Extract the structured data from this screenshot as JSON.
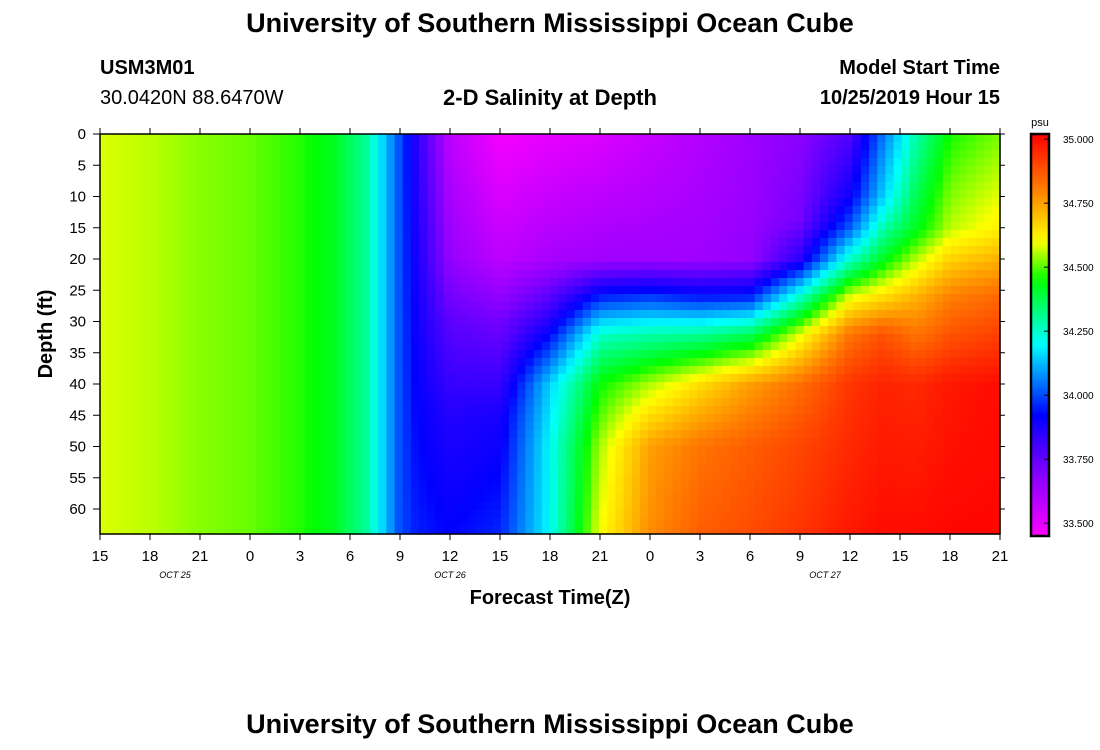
{
  "header": {
    "title": "University of Southern Mississippi Ocean Cube",
    "station_id": "USM3M01",
    "station_location": "30.0420N 88.6470W",
    "plot_title": "2-D Salinity at Depth",
    "model_start_label": "Model Start Time",
    "model_start_value": "10/25/2019 Hour 15"
  },
  "footer": {
    "title": "University of Southern Mississippi Ocean Cube"
  },
  "chart_data": {
    "type": "heatmap",
    "title": "2-D Salinity at Depth",
    "xlabel": "Forecast Time(Z)",
    "ylabel": "Depth (ft)",
    "x_tick_labels": [
      "15",
      "18",
      "21",
      "0",
      "3",
      "6",
      "9",
      "12",
      "15",
      "18",
      "21",
      "0",
      "3",
      "6",
      "9",
      "12",
      "15",
      "18",
      "21"
    ],
    "date_labels": [
      {
        "label": "OCT 25",
        "at_tick": 1.5
      },
      {
        "label": "OCT 26",
        "at_tick": 7
      },
      {
        "label": "OCT 27",
        "at_tick": 14.5
      }
    ],
    "x_range_hours": [
      0,
      54
    ],
    "y_ticks": [
      0,
      5,
      10,
      15,
      20,
      25,
      30,
      35,
      40,
      45,
      50,
      55,
      60
    ],
    "y_range": [
      0,
      64
    ],
    "y_reversed": true,
    "colorbar": {
      "unit": "psu",
      "range": [
        33.45,
        35.02
      ],
      "ticks": [
        "33.500",
        "33.750",
        "34.000",
        "34.250",
        "34.500",
        "34.750",
        "35.000"
      ]
    },
    "colormap": [
      {
        "v": 33.45,
        "c": "#ff00ff"
      },
      {
        "v": 33.7,
        "c": "#8000ff"
      },
      {
        "v": 33.92,
        "c": "#0000ff"
      },
      {
        "v": 34.06,
        "c": "#0080ff"
      },
      {
        "v": 34.2,
        "c": "#00ffff"
      },
      {
        "v": 34.45,
        "c": "#00ff00"
      },
      {
        "v": 34.6,
        "c": "#ffff00"
      },
      {
        "v": 34.8,
        "c": "#ff8000"
      },
      {
        "v": 35.02,
        "c": "#ff0000"
      }
    ],
    "salinity_profiles": [
      {
        "hour": 0,
        "depths": [
          0,
          64
        ],
        "values": [
          34.58,
          34.58
        ]
      },
      {
        "hour": 3,
        "depths": [
          0,
          64
        ],
        "values": [
          34.56,
          34.56
        ]
      },
      {
        "hour": 6,
        "depths": [
          0,
          64
        ],
        "values": [
          34.53,
          34.53
        ]
      },
      {
        "hour": 9,
        "depths": [
          0,
          64
        ],
        "values": [
          34.51,
          34.51
        ]
      },
      {
        "hour": 12,
        "depths": [
          0,
          64
        ],
        "values": [
          34.47,
          34.47
        ]
      },
      {
        "hour": 14,
        "depths": [
          0,
          64
        ],
        "values": [
          34.42,
          34.42
        ]
      },
      {
        "hour": 16,
        "depths": [
          0,
          64
        ],
        "values": [
          34.3,
          34.3
        ]
      },
      {
        "hour": 17,
        "depths": [
          0,
          64
        ],
        "values": [
          34.15,
          34.15
        ]
      },
      {
        "hour": 18,
        "depths": [
          0,
          64
        ],
        "values": [
          34.0,
          34.0
        ]
      },
      {
        "hour": 19,
        "depths": [
          0,
          64
        ],
        "values": [
          33.85,
          33.95
        ]
      },
      {
        "hour": 21,
        "depths": [
          0,
          20,
          30,
          45,
          64
        ],
        "values": [
          33.58,
          33.66,
          33.76,
          33.86,
          33.92
        ]
      },
      {
        "hour": 24,
        "depths": [
          0,
          20,
          30,
          45,
          64
        ],
        "values": [
          33.47,
          33.58,
          33.72,
          33.88,
          33.96
        ]
      },
      {
        "hour": 27,
        "depths": [
          0,
          20,
          30,
          40,
          50,
          64
        ],
        "values": [
          33.5,
          33.62,
          33.86,
          34.15,
          34.2,
          34.2
        ]
      },
      {
        "hour": 30,
        "depths": [
          0,
          20,
          26,
          32,
          40,
          50,
          64
        ],
        "values": [
          33.52,
          33.64,
          33.95,
          34.25,
          34.45,
          34.55,
          34.6
        ]
      },
      {
        "hour": 33,
        "depths": [
          0,
          20,
          26,
          32,
          40,
          50,
          64
        ],
        "values": [
          33.56,
          33.64,
          33.98,
          34.28,
          34.55,
          34.75,
          34.78
        ]
      },
      {
        "hour": 36,
        "depths": [
          0,
          20,
          26,
          32,
          40,
          50,
          64
        ],
        "values": [
          33.6,
          33.64,
          33.94,
          34.3,
          34.65,
          34.82,
          34.86
        ]
      },
      {
        "hour": 39,
        "depths": [
          0,
          20,
          26,
          32,
          40,
          50,
          64
        ],
        "values": [
          33.64,
          33.66,
          33.95,
          34.36,
          34.75,
          34.86,
          34.89
        ]
      },
      {
        "hour": 42,
        "depths": [
          0,
          14,
          20,
          26,
          32,
          40,
          50,
          64
        ],
        "values": [
          33.68,
          33.72,
          33.85,
          34.25,
          34.58,
          34.83,
          34.9,
          34.93
        ]
      },
      {
        "hour": 45,
        "depths": [
          0,
          10,
          15,
          20,
          26,
          32,
          40,
          64
        ],
        "values": [
          33.78,
          33.9,
          34.02,
          34.25,
          34.58,
          34.82,
          34.93,
          34.98
        ]
      },
      {
        "hour": 47,
        "depths": [
          0,
          10,
          15,
          20,
          26,
          32,
          40,
          64
        ],
        "values": [
          34.05,
          34.15,
          34.28,
          34.42,
          34.65,
          34.88,
          34.96,
          35.0
        ]
      },
      {
        "hour": 49,
        "depths": [
          0,
          15,
          26,
          40,
          64
        ],
        "values": [
          34.28,
          34.42,
          34.72,
          34.95,
          35.0
        ]
      },
      {
        "hour": 51,
        "depths": [
          0,
          15,
          26,
          40,
          64
        ],
        "values": [
          34.46,
          34.56,
          34.8,
          34.98,
          35.01
        ]
      },
      {
        "hour": 54,
        "depths": [
          0,
          15,
          26,
          40,
          64
        ],
        "values": [
          34.52,
          34.62,
          34.84,
          35.0,
          35.01
        ]
      }
    ]
  }
}
